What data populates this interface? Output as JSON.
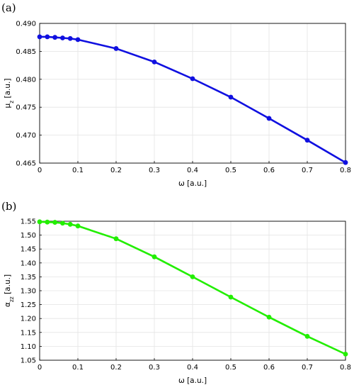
{
  "chart_data": [
    {
      "type": "line",
      "panel_label": "(a)",
      "xlabel": "ω [a.u.]",
      "ylabel": "μ",
      "ylabel_sub": "z",
      "ylabel_unit": " [a.u.]",
      "xlim": [
        0,
        0.8
      ],
      "ylim": [
        0.465,
        0.49
      ],
      "xticks": [
        "0",
        "0.1",
        "0.2",
        "0.3",
        "0.4",
        "0.5",
        "0.6",
        "0.7",
        "0.8"
      ],
      "yticks": [
        "0.465",
        "0.470",
        "0.475",
        "0.480",
        "0.485",
        "0.490"
      ],
      "grid": true,
      "series": [
        {
          "color": "#1010e0",
          "x": [
            0,
            0.02,
            0.04,
            0.06,
            0.08,
            0.1,
            0.2,
            0.3,
            0.4,
            0.5,
            0.6,
            0.7,
            0.8
          ],
          "y": [
            0.4876,
            0.4876,
            0.4875,
            0.4874,
            0.4873,
            0.4871,
            0.4855,
            0.4831,
            0.4801,
            0.4768,
            0.473,
            0.4691,
            0.4651
          ]
        }
      ]
    },
    {
      "type": "line",
      "panel_label": "(b)",
      "xlabel": "ω [a.u.]",
      "ylabel": "α",
      "ylabel_sub": "zz",
      "ylabel_unit": " [a.u.]",
      "xlim": [
        0,
        0.8
      ],
      "ylim": [
        1.05,
        1.55
      ],
      "xticks": [
        "0",
        "0.1",
        "0.2",
        "0.3",
        "0.4",
        "0.5",
        "0.6",
        "0.7",
        "0.8"
      ],
      "yticks": [
        "1.05",
        "1.10",
        "1.15",
        "1.20",
        "1.25",
        "1.30",
        "1.35",
        "1.40",
        "1.45",
        "1.50",
        "1.55"
      ],
      "grid": true,
      "series": [
        {
          "color": "#22ee00",
          "x": [
            0,
            0.02,
            0.04,
            0.06,
            0.08,
            0.1,
            0.2,
            0.3,
            0.4,
            0.5,
            0.6,
            0.7,
            0.8
          ],
          "y": [
            1.548,
            1.547,
            1.546,
            1.543,
            1.539,
            1.533,
            1.487,
            1.422,
            1.35,
            1.277,
            1.205,
            1.136,
            1.072
          ]
        }
      ]
    }
  ]
}
